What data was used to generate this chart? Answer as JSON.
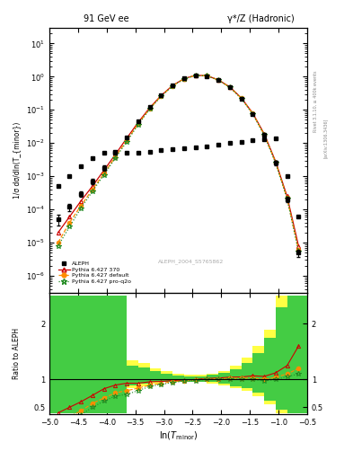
{
  "title_left": "91 GeV ee",
  "title_right": "γ*/Z (Hadronic)",
  "ylabel_main": "1/σ dσ/dln(T_{minor})",
  "ylabel_ratio": "Ratio to ALEPH",
  "xlabel": "ln(T_{minor})",
  "watermark": "ALEPH_2004_S5765862",
  "right_label_top": "Rivet 3.1.10, ≥ 400k events",
  "right_label_bottom": "[arXiv:1306.3436]",
  "legend": [
    "ALEPH",
    "Pythia 6.427 370",
    "Pythia 6.427 default",
    "Pythia 6.427 pro-q2o"
  ],
  "xlim": [
    -5.0,
    -0.5
  ],
  "ylim_main": [
    3e-07,
    30.0
  ],
  "ylim_ratio": [
    0.38,
    2.55
  ],
  "x_data": [
    -4.85,
    -4.65,
    -4.45,
    -4.25,
    -4.05,
    -3.85,
    -3.65,
    -3.45,
    -3.25,
    -3.05,
    -2.85,
    -2.65,
    -2.45,
    -2.25,
    -2.05,
    -1.85,
    -1.65,
    -1.45,
    -1.25,
    -1.05,
    -0.85,
    -0.65
  ],
  "aleph_y": [
    5e-05,
    0.00012,
    0.0003,
    0.0007,
    0.0018,
    0.005,
    0.015,
    0.045,
    0.12,
    0.28,
    0.55,
    0.88,
    1.1,
    1.05,
    0.78,
    0.47,
    0.22,
    0.075,
    0.018,
    0.0025,
    0.0002,
    5e-06
  ],
  "aleph_yerr_lo": [
    3e-05,
    5e-05,
    0.0001,
    0.0002,
    0.0005,
    0.0015,
    0.004,
    0.012,
    0.03,
    0.06,
    0.1,
    0.15,
    0.18,
    0.17,
    0.13,
    0.08,
    0.04,
    0.015,
    0.004,
    0.0006,
    6e-05,
    2e-06
  ],
  "aleph_yerr_hi": [
    3e-05,
    5e-05,
    0.0001,
    0.0002,
    0.0005,
    0.0015,
    0.004,
    0.012,
    0.03,
    0.06,
    0.1,
    0.15,
    0.18,
    0.17,
    0.13,
    0.08,
    0.04,
    0.015,
    0.004,
    0.0006,
    6e-05,
    2e-06
  ],
  "py370_y": [
    2e-05,
    6e-05,
    0.00018,
    0.0005,
    0.0015,
    0.0045,
    0.014,
    0.042,
    0.115,
    0.27,
    0.54,
    0.87,
    1.1,
    1.07,
    0.8,
    0.49,
    0.23,
    0.08,
    0.019,
    0.0028,
    0.00025,
    8e-06
  ],
  "pydef_y": [
    1e-05,
    4e-05,
    0.00013,
    0.0004,
    0.0012,
    0.0038,
    0.012,
    0.038,
    0.108,
    0.26,
    0.53,
    0.86,
    1.09,
    1.06,
    0.79,
    0.48,
    0.225,
    0.077,
    0.018,
    0.0026,
    0.00022,
    6e-06
  ],
  "pyq2o_y": [
    8e-06,
    3e-05,
    0.00011,
    0.00035,
    0.0011,
    0.0035,
    0.011,
    0.036,
    0.105,
    0.255,
    0.52,
    0.855,
    1.08,
    1.055,
    0.785,
    0.475,
    0.22,
    0.075,
    0.0175,
    0.0025,
    0.00021,
    5.5e-06
  ],
  "black_sq_x": [
    -4.85,
    -4.65,
    -4.45,
    -4.25,
    -4.05,
    -3.85,
    -3.65,
    -3.45,
    -3.25,
    -3.05,
    -2.85,
    -2.65,
    -2.45,
    -2.25,
    -2.05,
    -1.85,
    -1.65,
    -1.45,
    -1.25,
    -1.05,
    -0.85,
    -0.65
  ],
  "black_sq_y": [
    0.0005,
    0.001,
    0.002,
    0.0035,
    0.005,
    0.0055,
    0.005,
    0.005,
    0.0055,
    0.006,
    0.0065,
    0.007,
    0.0075,
    0.008,
    0.009,
    0.01,
    0.011,
    0.012,
    0.013,
    0.014,
    0.001,
    6e-05
  ],
  "colors": {
    "aleph": "#000000",
    "py370": "#cc0000",
    "pydef": "#ff8c00",
    "pyq2o": "#228b22",
    "yellow_band": "#ffff44",
    "green_band": "#44cc44"
  },
  "ratio_bands": {
    "yellow_lo": [
      0.4,
      0.4,
      0.4,
      0.4,
      0.4,
      0.4,
      0.85,
      0.88,
      0.93,
      0.95,
      0.95,
      0.95,
      0.95,
      0.95,
      0.93,
      0.9,
      0.85,
      0.8,
      0.7,
      0.55,
      0.4,
      0.4
    ],
    "yellow_hi": [
      2.5,
      2.5,
      2.5,
      2.5,
      2.5,
      2.5,
      1.35,
      1.3,
      1.2,
      1.15,
      1.1,
      1.08,
      1.07,
      1.08,
      1.1,
      1.15,
      1.25,
      1.4,
      1.6,
      1.9,
      2.5,
      2.5
    ],
    "green_lo": [
      0.4,
      0.4,
      0.4,
      0.4,
      0.4,
      0.4,
      0.9,
      0.92,
      0.95,
      0.96,
      0.96,
      0.96,
      0.96,
      0.96,
      0.95,
      0.92,
      0.88,
      0.84,
      0.76,
      0.62,
      0.45,
      0.4
    ],
    "green_hi": [
      2.5,
      2.5,
      2.5,
      2.5,
      2.5,
      2.5,
      1.25,
      1.22,
      1.15,
      1.1,
      1.07,
      1.05,
      1.05,
      1.06,
      1.08,
      1.12,
      1.18,
      1.3,
      1.48,
      1.75,
      2.3,
      2.5
    ]
  }
}
